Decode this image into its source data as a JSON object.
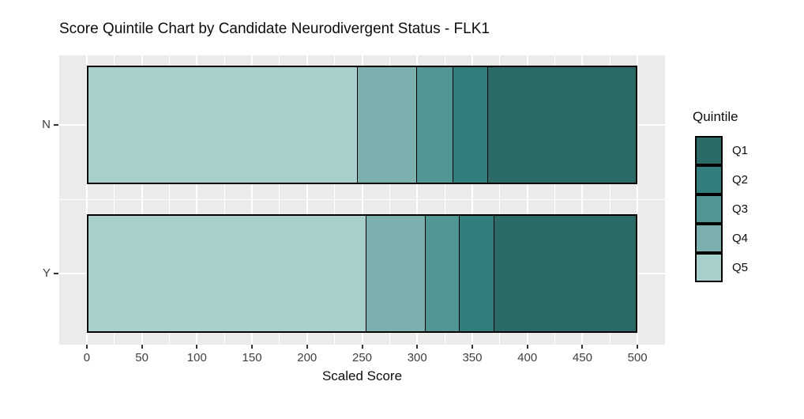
{
  "chart_data": {
    "type": "bar",
    "orientation": "horizontal",
    "stacked": true,
    "title": "Score Quintile Chart by Candidate Neurodivergent Status - FLK1",
    "xlabel": "Scaled Score",
    "xlim": [
      0,
      500
    ],
    "x_ticks": [
      0,
      50,
      100,
      150,
      200,
      250,
      300,
      350,
      400,
      450,
      500
    ],
    "categories": [
      "N",
      "Y"
    ],
    "stack_order": [
      "Q5",
      "Q4",
      "Q3",
      "Q2",
      "Q1"
    ],
    "series": [
      {
        "name": "Q1",
        "color": "#2b6a66",
        "values": [
          135,
          129
        ]
      },
      {
        "name": "Q2",
        "color": "#327e7c",
        "values": [
          32,
          32
        ]
      },
      {
        "name": "Q3",
        "color": "#509794",
        "values": [
          33,
          31
        ]
      },
      {
        "name": "Q4",
        "color": "#7bb0ae",
        "values": [
          54,
          54
        ]
      },
      {
        "name": "Q5",
        "color": "#a9cfcc",
        "values": [
          246,
          254
        ]
      }
    ],
    "cumulative_boundaries": {
      "N": [
        246,
        300,
        333,
        365,
        500
      ],
      "Y": [
        254,
        308,
        339,
        371,
        500
      ]
    },
    "legend": {
      "title": "Quintile",
      "position": "right",
      "entries": [
        "Q1",
        "Q2",
        "Q3",
        "Q4",
        "Q5"
      ]
    },
    "grid": true,
    "panel_bg": "#ebebeb",
    "grid_color": "#ffffff",
    "bar_border_color": "#000000"
  },
  "text_colors": {
    "title": "#0d0d0d",
    "axis_text": "#404040",
    "axis_title": "#0d0d0d"
  }
}
